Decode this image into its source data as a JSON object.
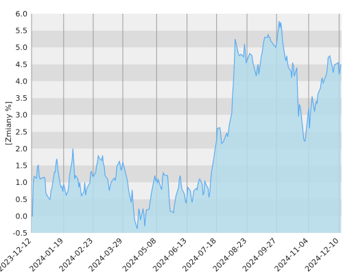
{
  "chart_data": {
    "type": "area",
    "title": "",
    "xlabel": "",
    "ylabel": "[Zmiany %]",
    "ylim": [
      -0.5,
      6.0
    ],
    "xlim": [
      "2023-12-12",
      "2024-12-13"
    ],
    "y_ticks": [
      "-0.5",
      "0.0",
      "0.5",
      "1.0",
      "1.5",
      "2.0",
      "2.5",
      "3.0",
      "3.5",
      "4.0",
      "4.5",
      "5.0",
      "5.5",
      "6.0"
    ],
    "x_ticks": [
      "2023-12-12",
      "2024-01-19",
      "2024-02-23",
      "2024-03-29",
      "2024-05-08",
      "2024-06-13",
      "2024-07-18",
      "2024-08-23",
      "2024-09-27",
      "2024-11-04",
      "2024-12-10"
    ],
    "grid": true,
    "legend": "none",
    "colors": {
      "line": "#5aaaf0",
      "fill": "#b4dcea",
      "band_light": "#efefef",
      "band_dark": "#dcdcdc",
      "gridline": "#9a9a9a"
    },
    "series": [
      {
        "points": [
          [
            "2023-12-12",
            0.0
          ],
          [
            "2023-12-13",
            0.0
          ],
          [
            "2023-12-14",
            0.98
          ],
          [
            "2023-12-15",
            1.18
          ],
          [
            "2023-12-18",
            1.12
          ],
          [
            "2023-12-19",
            1.45
          ],
          [
            "2023-12-20",
            1.52
          ],
          [
            "2023-12-21",
            1.2
          ],
          [
            "2023-12-22",
            1.1
          ],
          [
            "2023-12-27",
            1.15
          ],
          [
            "2023-12-28",
            1.1
          ],
          [
            "2023-12-29",
            0.68
          ],
          [
            "2024-01-02",
            0.5
          ],
          [
            "2024-01-03",
            0.5
          ],
          [
            "2024-01-04",
            0.75
          ],
          [
            "2024-01-05",
            0.82
          ],
          [
            "2024-01-08",
            1.3
          ],
          [
            "2024-01-09",
            1.3
          ],
          [
            "2024-01-10",
            1.58
          ],
          [
            "2024-01-11",
            1.7
          ],
          [
            "2024-01-12",
            1.4
          ],
          [
            "2024-01-15",
            0.92
          ],
          [
            "2024-01-16",
            0.85
          ],
          [
            "2024-01-17",
            0.88
          ],
          [
            "2024-01-18",
            0.72
          ],
          [
            "2024-01-19",
            0.95
          ],
          [
            "2024-01-22",
            0.62
          ],
          [
            "2024-01-23",
            0.68
          ],
          [
            "2024-01-24",
            0.72
          ],
          [
            "2024-01-25",
            0.9
          ],
          [
            "2024-01-26",
            1.2
          ],
          [
            "2024-01-29",
            1.65
          ],
          [
            "2024-01-30",
            2.0
          ],
          [
            "2024-01-31",
            1.6
          ],
          [
            "2024-02-01",
            1.1
          ],
          [
            "2024-02-02",
            1.2
          ],
          [
            "2024-02-05",
            1.1
          ],
          [
            "2024-02-06",
            0.85
          ],
          [
            "2024-02-07",
            1.0
          ],
          [
            "2024-02-08",
            0.8
          ],
          [
            "2024-02-09",
            0.6
          ],
          [
            "2024-02-12",
            0.72
          ],
          [
            "2024-02-13",
            1.0
          ],
          [
            "2024-02-14",
            0.62
          ],
          [
            "2024-02-15",
            0.78
          ],
          [
            "2024-02-16",
            0.85
          ],
          [
            "2024-02-19",
            0.98
          ],
          [
            "2024-02-20",
            1.3
          ],
          [
            "2024-02-21",
            1.32
          ],
          [
            "2024-02-22",
            1.2
          ],
          [
            "2024-02-23",
            1.17
          ],
          [
            "2024-02-26",
            1.3
          ],
          [
            "2024-02-27",
            1.5
          ],
          [
            "2024-02-28",
            1.6
          ],
          [
            "2024-02-29",
            1.8
          ],
          [
            "2024-03-01",
            1.72
          ],
          [
            "2024-03-04",
            1.65
          ],
          [
            "2024-03-05",
            1.8
          ],
          [
            "2024-03-06",
            1.55
          ],
          [
            "2024-03-07",
            1.48
          ],
          [
            "2024-03-08",
            1.2
          ],
          [
            "2024-03-11",
            1.1
          ],
          [
            "2024-03-12",
            0.95
          ],
          [
            "2024-03-13",
            0.75
          ],
          [
            "2024-03-14",
            0.88
          ],
          [
            "2024-03-15",
            1.0
          ],
          [
            "2024-03-18",
            1.1
          ],
          [
            "2024-03-19",
            1.12
          ],
          [
            "2024-03-20",
            1.05
          ],
          [
            "2024-03-21",
            1.2
          ],
          [
            "2024-03-22",
            1.48
          ],
          [
            "2024-03-25",
            1.62
          ],
          [
            "2024-03-26",
            1.5
          ],
          [
            "2024-03-27",
            1.35
          ],
          [
            "2024-03-28",
            1.45
          ],
          [
            "2024-03-29",
            1.6
          ],
          [
            "2024-04-01",
            1.3
          ],
          [
            "2024-04-02",
            1.2
          ],
          [
            "2024-04-03",
            1.1
          ],
          [
            "2024-04-04",
            0.95
          ],
          [
            "2024-04-05",
            0.75
          ],
          [
            "2024-04-08",
            0.4
          ],
          [
            "2024-04-09",
            0.78
          ],
          [
            "2024-04-10",
            0.42
          ],
          [
            "2024-04-11",
            0.1
          ],
          [
            "2024-04-12",
            -0.12
          ],
          [
            "2024-04-15",
            -0.38
          ],
          [
            "2024-04-16",
            -0.1
          ],
          [
            "2024-04-17",
            0.22
          ],
          [
            "2024-04-18",
            0.1
          ],
          [
            "2024-04-19",
            -0.12
          ],
          [
            "2024-04-22",
            0.22
          ],
          [
            "2024-04-23",
            0.05
          ],
          [
            "2024-04-24",
            -0.3
          ],
          [
            "2024-04-25",
            0.0
          ],
          [
            "2024-04-26",
            0.18
          ],
          [
            "2024-04-29",
            0.2
          ],
          [
            "2024-04-30",
            0.35
          ],
          [
            "2024-05-02",
            0.7
          ],
          [
            "2024-05-06",
            1.2
          ],
          [
            "2024-05-07",
            1.05
          ],
          [
            "2024-05-08",
            1.1
          ],
          [
            "2024-05-09",
            0.98
          ],
          [
            "2024-05-10",
            1.08
          ],
          [
            "2024-05-13",
            0.85
          ],
          [
            "2024-05-14",
            0.78
          ],
          [
            "2024-05-15",
            1.15
          ],
          [
            "2024-05-16",
            1.28
          ],
          [
            "2024-05-17",
            1.22
          ],
          [
            "2024-05-20",
            1.2
          ],
          [
            "2024-05-21",
            1.2
          ],
          [
            "2024-05-22",
            0.9
          ],
          [
            "2024-05-23",
            0.45
          ],
          [
            "2024-05-24",
            0.15
          ],
          [
            "2024-05-27",
            0.12
          ],
          [
            "2024-05-28",
            0.1
          ],
          [
            "2024-05-29",
            0.3
          ],
          [
            "2024-05-31",
            0.6
          ],
          [
            "2024-06-03",
            0.85
          ],
          [
            "2024-06-04",
            1.1
          ],
          [
            "2024-06-05",
            1.2
          ],
          [
            "2024-06-06",
            0.95
          ],
          [
            "2024-06-07",
            0.8
          ],
          [
            "2024-06-10",
            0.65
          ],
          [
            "2024-06-11",
            0.45
          ],
          [
            "2024-06-12",
            0.38
          ],
          [
            "2024-06-13",
            0.62
          ],
          [
            "2024-06-14",
            0.85
          ],
          [
            "2024-06-17",
            0.75
          ],
          [
            "2024-06-18",
            0.55
          ],
          [
            "2024-06-19",
            0.4
          ],
          [
            "2024-06-20",
            0.55
          ],
          [
            "2024-06-21",
            0.75
          ],
          [
            "2024-06-24",
            0.82
          ],
          [
            "2024-06-25",
            0.78
          ],
          [
            "2024-06-26",
            0.95
          ],
          [
            "2024-06-27",
            1.05
          ],
          [
            "2024-06-28",
            1.1
          ],
          [
            "2024-07-01",
            0.95
          ],
          [
            "2024-07-02",
            0.62
          ],
          [
            "2024-07-03",
            0.7
          ],
          [
            "2024-07-04",
            1.05
          ],
          [
            "2024-07-05",
            0.95
          ],
          [
            "2024-07-08",
            0.82
          ],
          [
            "2024-07-09",
            0.55
          ],
          [
            "2024-07-10",
            0.7
          ],
          [
            "2024-07-11",
            1.05
          ],
          [
            "2024-07-12",
            1.3
          ],
          [
            "2024-07-15",
            1.75
          ],
          [
            "2024-07-16",
            1.95
          ],
          [
            "2024-07-17",
            2.1
          ],
          [
            "2024-07-18",
            2.25
          ],
          [
            "2024-07-19",
            2.6
          ],
          [
            "2024-07-22",
            2.62
          ],
          [
            "2024-07-23",
            2.4
          ],
          [
            "2024-07-24",
            2.15
          ],
          [
            "2024-07-25",
            2.18
          ],
          [
            "2024-07-26",
            2.2
          ],
          [
            "2024-07-29",
            2.4
          ],
          [
            "2024-07-30",
            2.45
          ],
          [
            "2024-07-31",
            2.35
          ],
          [
            "2024-08-01",
            2.48
          ],
          [
            "2024-08-02",
            2.7
          ],
          [
            "2024-08-05",
            3.05
          ],
          [
            "2024-08-06",
            3.6
          ],
          [
            "2024-08-07",
            4.0
          ],
          [
            "2024-08-08",
            4.55
          ],
          [
            "2024-08-09",
            5.25
          ],
          [
            "2024-08-12",
            4.9
          ],
          [
            "2024-08-13",
            4.8
          ],
          [
            "2024-08-14",
            4.75
          ],
          [
            "2024-08-16",
            4.8
          ],
          [
            "2024-08-19",
            4.72
          ],
          [
            "2024-08-20",
            5.1
          ],
          [
            "2024-08-21",
            4.88
          ],
          [
            "2024-08-22",
            4.55
          ],
          [
            "2024-08-23",
            4.6
          ],
          [
            "2024-08-26",
            4.82
          ],
          [
            "2024-08-27",
            4.8
          ],
          [
            "2024-08-28",
            4.78
          ],
          [
            "2024-08-29",
            4.75
          ],
          [
            "2024-08-30",
            4.55
          ],
          [
            "2024-09-02",
            4.25
          ],
          [
            "2024-09-03",
            4.15
          ],
          [
            "2024-09-04",
            4.35
          ],
          [
            "2024-09-05",
            4.5
          ],
          [
            "2024-09-06",
            4.2
          ],
          [
            "2024-09-09",
            4.75
          ],
          [
            "2024-09-10",
            4.85
          ],
          [
            "2024-09-11",
            5.05
          ],
          [
            "2024-09-12",
            5.2
          ],
          [
            "2024-09-13",
            5.3
          ],
          [
            "2024-09-16",
            5.3
          ],
          [
            "2024-09-17",
            5.38
          ],
          [
            "2024-09-18",
            5.3
          ],
          [
            "2024-09-19",
            5.3
          ],
          [
            "2024-09-20",
            5.2
          ],
          [
            "2024-09-23",
            5.1
          ],
          [
            "2024-09-24",
            5.05
          ],
          [
            "2024-09-25",
            5.05
          ],
          [
            "2024-09-26",
            5.0
          ],
          [
            "2024-09-27",
            5.1
          ],
          [
            "2024-09-30",
            5.78
          ],
          [
            "2024-10-01",
            5.58
          ],
          [
            "2024-10-02",
            5.75
          ],
          [
            "2024-10-03",
            5.55
          ],
          [
            "2024-10-04",
            5.2
          ],
          [
            "2024-10-07",
            4.7
          ],
          [
            "2024-10-08",
            4.6
          ],
          [
            "2024-10-09",
            4.75
          ],
          [
            "2024-10-10",
            4.55
          ],
          [
            "2024-10-11",
            4.4
          ],
          [
            "2024-10-14",
            4.3
          ],
          [
            "2024-10-15",
            4.1
          ],
          [
            "2024-10-16",
            4.55
          ],
          [
            "2024-10-17",
            4.45
          ],
          [
            "2024-10-18",
            4.15
          ],
          [
            "2024-10-21",
            4.4
          ],
          [
            "2024-10-22",
            3.5
          ],
          [
            "2024-10-23",
            2.95
          ],
          [
            "2024-10-24",
            3.3
          ],
          [
            "2024-10-25",
            3.25
          ],
          [
            "2024-10-28",
            2.6
          ],
          [
            "2024-10-29",
            2.3
          ],
          [
            "2024-10-30",
            2.22
          ],
          [
            "2024-10-31",
            2.25
          ],
          [
            "2024-11-04",
            3.2
          ],
          [
            "2024-11-05",
            2.6
          ],
          [
            "2024-11-06",
            3.0
          ],
          [
            "2024-11-07",
            3.3
          ],
          [
            "2024-11-08",
            3.55
          ],
          [
            "2024-11-11",
            3.1
          ],
          [
            "2024-11-12",
            3.3
          ],
          [
            "2024-11-13",
            3.4
          ],
          [
            "2024-11-14",
            3.35
          ],
          [
            "2024-11-15",
            3.62
          ],
          [
            "2024-11-18",
            3.8
          ],
          [
            "2024-11-19",
            4.0
          ],
          [
            "2024-11-20",
            4.1
          ],
          [
            "2024-11-21",
            3.95
          ],
          [
            "2024-11-22",
            4.0
          ],
          [
            "2024-11-25",
            4.2
          ],
          [
            "2024-11-26",
            4.35
          ],
          [
            "2024-11-27",
            4.7
          ],
          [
            "2024-11-28",
            4.72
          ],
          [
            "2024-11-29",
            4.75
          ],
          [
            "2024-12-02",
            4.4
          ],
          [
            "2024-12-03",
            4.25
          ],
          [
            "2024-12-04",
            4.4
          ],
          [
            "2024-12-05",
            4.5
          ],
          [
            "2024-12-06",
            4.5
          ],
          [
            "2024-12-09",
            4.55
          ],
          [
            "2024-12-10",
            4.2
          ],
          [
            "2024-12-11",
            4.3
          ],
          [
            "2024-12-12",
            4.5
          ]
        ]
      }
    ]
  }
}
